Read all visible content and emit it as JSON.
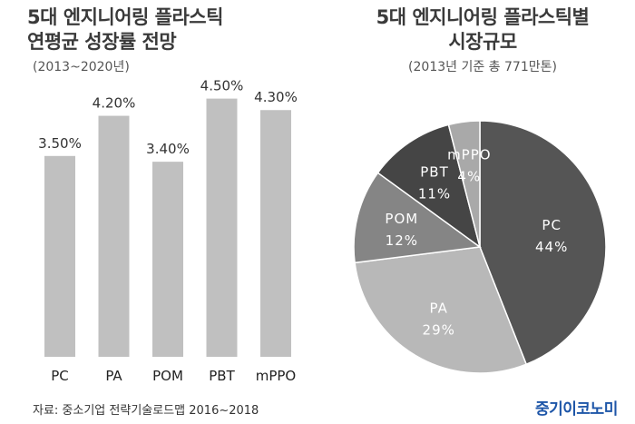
{
  "left": {
    "title_line1": "5대 엔지니어링 플라스틱",
    "title_line2": "연평균 성장률 전망",
    "subtitle": "(2013~2020년)"
  },
  "right": {
    "title_line1": "5대 엔지니어링 플라스틱별",
    "title_line2": "시장규모",
    "subtitle": "(2013년 기준 총 771만톤)"
  },
  "source": "자료: 중소기업 전략기술로드맵 2016~2018",
  "brand": "중기이코노미",
  "colors": {
    "bar": "#c0c0c0",
    "pie": [
      "#555555",
      "#b8b8b8",
      "#858585",
      "#454545",
      "#a9a9a9"
    ],
    "brand": "#1e56a8"
  },
  "chart_data": [
    {
      "type": "bar",
      "categories": [
        "PC",
        "PA",
        "POM",
        "PBT",
        "mPPO"
      ],
      "values": [
        3.5,
        4.2,
        3.4,
        4.5,
        4.3
      ],
      "value_labels": [
        "3.50%",
        "4.20%",
        "3.40%",
        "4.50%",
        "4.30%"
      ],
      "ylim": [
        0,
        5
      ],
      "grid": false
    },
    {
      "type": "pie",
      "categories": [
        "PC",
        "PA",
        "POM",
        "PBT",
        "mPPO"
      ],
      "values": [
        44,
        29,
        12,
        11,
        4
      ],
      "value_labels": [
        "44%",
        "29%",
        "12%",
        "11%",
        "4%"
      ],
      "start": "top, clockwise"
    }
  ]
}
